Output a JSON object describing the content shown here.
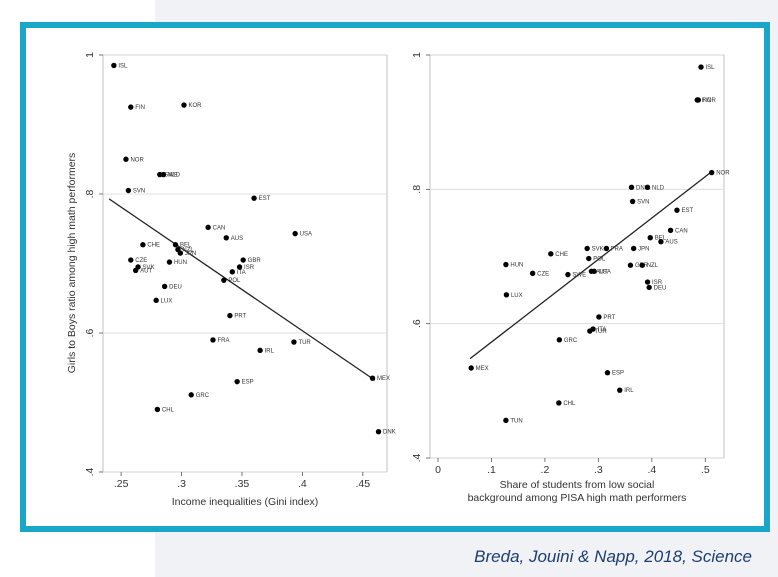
{
  "colors": {
    "navy": "#1d3d75",
    "frame": "#1aa6c8",
    "point": "#000000",
    "fit_line": "#222222",
    "grid": "#d9d9d9"
  },
  "citation": "Breda, Jouini & Napp, 2018, Science",
  "chart_data": [
    {
      "type": "scatter",
      "title": "",
      "xlabel": "Income inequalities (Gini index)",
      "ylabel": "Girls to Boys ratio among high math performers",
      "xlim": [
        0.235,
        0.47
      ],
      "ylim": [
        0.4,
        1.0
      ],
      "xticks": [
        0.25,
        0.3,
        0.35,
        0.4,
        0.45
      ],
      "xtick_labels": [
        ".25",
        ".3",
        ".35",
        ".4",
        ".45"
      ],
      "yticks": [
        0.4,
        0.6,
        0.8,
        1.0
      ],
      "ytick_labels": [
        ".4",
        ".6",
        ".8",
        "1"
      ],
      "grid": "horizontal",
      "fit_line": {
        "x": [
          0.24,
          0.46
        ],
        "y": [
          0.793,
          0.532
        ]
      },
      "points": [
        {
          "label": "ISL",
          "x": 0.244,
          "y": 0.985
        },
        {
          "label": "FIN",
          "x": 0.258,
          "y": 0.925
        },
        {
          "label": "KOR",
          "x": 0.302,
          "y": 0.928
        },
        {
          "label": "NOR",
          "x": 0.254,
          "y": 0.85
        },
        {
          "label": "SWE",
          "x": 0.282,
          "y": 0.828
        },
        {
          "label": "NLD",
          "x": 0.285,
          "y": 0.828
        },
        {
          "label": "SVN",
          "x": 0.256,
          "y": 0.805
        },
        {
          "label": "EST",
          "x": 0.36,
          "y": 0.794
        },
        {
          "label": "CAN",
          "x": 0.322,
          "y": 0.752
        },
        {
          "label": "AUS",
          "x": 0.337,
          "y": 0.737
        },
        {
          "label": "USA",
          "x": 0.394,
          "y": 0.743
        },
        {
          "label": "CHE",
          "x": 0.268,
          "y": 0.727
        },
        {
          "label": "BEL",
          "x": 0.295,
          "y": 0.727
        },
        {
          "label": "NZL",
          "x": 0.297,
          "y": 0.72
        },
        {
          "label": "JPN",
          "x": 0.299,
          "y": 0.715
        },
        {
          "label": "CZE",
          "x": 0.258,
          "y": 0.705
        },
        {
          "label": "SVK",
          "x": 0.264,
          "y": 0.695
        },
        {
          "label": "AUT",
          "x": 0.262,
          "y": 0.69
        },
        {
          "label": "HUN",
          "x": 0.29,
          "y": 0.702
        },
        {
          "label": "GBR",
          "x": 0.351,
          "y": 0.705
        },
        {
          "label": "ISR",
          "x": 0.348,
          "y": 0.695
        },
        {
          "label": "ITA",
          "x": 0.342,
          "y": 0.688
        },
        {
          "label": "POL",
          "x": 0.335,
          "y": 0.676
        },
        {
          "label": "DEU",
          "x": 0.286,
          "y": 0.667
        },
        {
          "label": "LUX",
          "x": 0.279,
          "y": 0.647
        },
        {
          "label": "PRT",
          "x": 0.34,
          "y": 0.625
        },
        {
          "label": "FRA",
          "x": 0.326,
          "y": 0.59
        },
        {
          "label": "TUR",
          "x": 0.393,
          "y": 0.587
        },
        {
          "label": "IRL",
          "x": 0.365,
          "y": 0.575
        },
        {
          "label": "ESP",
          "x": 0.346,
          "y": 0.53
        },
        {
          "label": "MEX",
          "x": 0.458,
          "y": 0.535
        },
        {
          "label": "GRC",
          "x": 0.308,
          "y": 0.511
        },
        {
          "label": "CHL",
          "x": 0.28,
          "y": 0.49
        },
        {
          "label": "DNK",
          "x": 0.463,
          "y": 0.458
        }
      ]
    },
    {
      "type": "scatter",
      "title": "",
      "xlabel": "Share of students from low social background among PISA high math performers",
      "ylabel": "",
      "xlim": [
        -0.015,
        0.535
      ],
      "ylim": [
        0.4,
        1.0
      ],
      "xticks": [
        0,
        0.1,
        0.2,
        0.3,
        0.4,
        0.5
      ],
      "xtick_labels": [
        "0",
        ".1",
        ".2",
        ".3",
        ".4",
        ".5"
      ],
      "yticks": [
        0.4,
        0.6,
        0.8,
        1.0
      ],
      "ytick_labels": [
        ".4",
        ".6",
        ".8",
        "1"
      ],
      "grid": "horizontal",
      "fit_line": {
        "x": [
          0.06,
          0.51
        ],
        "y": [
          0.548,
          0.825
        ]
      },
      "points": [
        {
          "label": "ISL",
          "x": 0.492,
          "y": 0.982
        },
        {
          "label": "FIN",
          "x": 0.485,
          "y": 0.933
        },
        {
          "label": "KOR",
          "x": 0.487,
          "y": 0.933
        },
        {
          "label": "NOR",
          "x": 0.512,
          "y": 0.825
        },
        {
          "label": "DNK",
          "x": 0.362,
          "y": 0.803
        },
        {
          "label": "NLD",
          "x": 0.392,
          "y": 0.803
        },
        {
          "label": "SVN",
          "x": 0.364,
          "y": 0.782
        },
        {
          "label": "EST",
          "x": 0.447,
          "y": 0.769
        },
        {
          "label": "CAN",
          "x": 0.435,
          "y": 0.739
        },
        {
          "label": "BEL",
          "x": 0.397,
          "y": 0.728
        },
        {
          "label": "AUS",
          "x": 0.417,
          "y": 0.722
        },
        {
          "label": "SVK",
          "x": 0.279,
          "y": 0.712
        },
        {
          "label": "FRA",
          "x": 0.315,
          "y": 0.712
        },
        {
          "label": "JPN",
          "x": 0.366,
          "y": 0.712
        },
        {
          "label": "CHE",
          "x": 0.211,
          "y": 0.704
        },
        {
          "label": "POL",
          "x": 0.282,
          "y": 0.697
        },
        {
          "label": "HUN",
          "x": 0.127,
          "y": 0.688
        },
        {
          "label": "GBR",
          "x": 0.36,
          "y": 0.687
        },
        {
          "label": "NZL",
          "x": 0.382,
          "y": 0.687
        },
        {
          "label": "CZE",
          "x": 0.177,
          "y": 0.675
        },
        {
          "label": "SWE",
          "x": 0.243,
          "y": 0.673
        },
        {
          "label": "USA",
          "x": 0.292,
          "y": 0.678
        },
        {
          "label": "AUT",
          "x": 0.287,
          "y": 0.678
        },
        {
          "label": "ISR",
          "x": 0.392,
          "y": 0.662
        },
        {
          "label": "DEU",
          "x": 0.395,
          "y": 0.654
        },
        {
          "label": "LUX",
          "x": 0.128,
          "y": 0.643
        },
        {
          "label": "PRT",
          "x": 0.301,
          "y": 0.61
        },
        {
          "label": "ITA",
          "x": 0.29,
          "y": 0.592
        },
        {
          "label": "TUR",
          "x": 0.284,
          "y": 0.589
        },
        {
          "label": "GRC",
          "x": 0.227,
          "y": 0.576
        },
        {
          "label": "MEX",
          "x": 0.062,
          "y": 0.534
        },
        {
          "label": "ESP",
          "x": 0.317,
          "y": 0.527
        },
        {
          "label": "IRL",
          "x": 0.34,
          "y": 0.501
        },
        {
          "label": "CHL",
          "x": 0.226,
          "y": 0.482
        },
        {
          "label": "TUN",
          "x": 0.127,
          "y": 0.456
        }
      ]
    }
  ]
}
